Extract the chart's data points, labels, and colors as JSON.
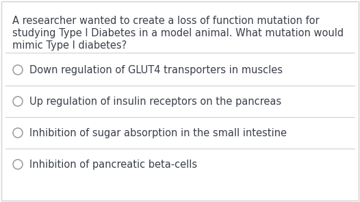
{
  "background_color": "#ffffff",
  "border_color": "#d0d0d0",
  "question_text_lines": [
    "A researcher wanted to create a loss of function mutation for",
    "studying Type I Diabetes in a model animal. What mutation would",
    "mimic Type I diabetes?"
  ],
  "question_fontsize": 10.5,
  "question_color": "#3a3f4a",
  "options": [
    "Down regulation of GLUT4 transporters in muscles",
    "Up regulation of insulin receptors on the pancreas",
    "Inhibition of sugar absorption in the small intestine",
    "Inhibition of pancreatic beta-cells"
  ],
  "option_fontsize": 10.5,
  "option_color": "#3a3f4a",
  "circle_edge_color": "#999999",
  "separator_color": "#d0d0d0",
  "fig_width": 5.26,
  "fig_height": 2.95,
  "dpi": 100
}
